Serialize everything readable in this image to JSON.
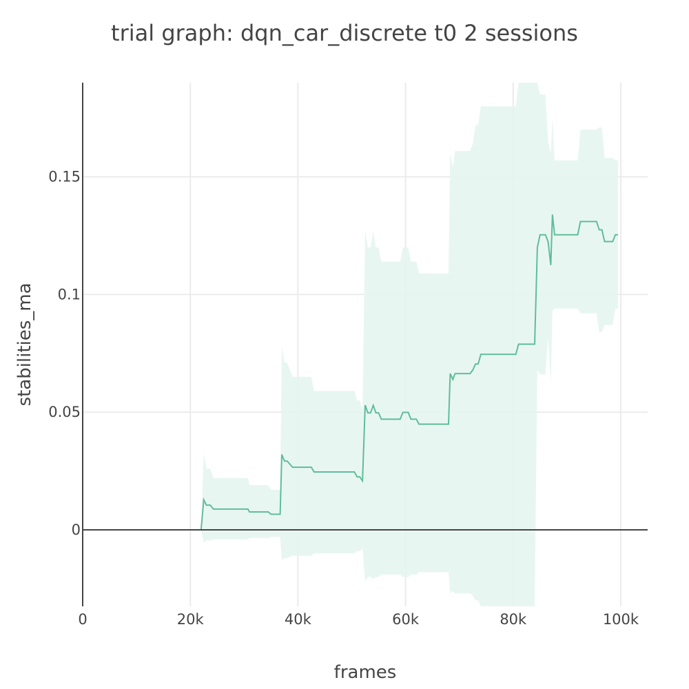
{
  "chart_data": {
    "type": "line",
    "title": "trial graph: dqn_car_discrete t0 2 sessions",
    "xlabel": "frames",
    "ylabel": "stabilities_ma",
    "xlim": [
      0,
      105000
    ],
    "ylim": [
      -0.0325,
      0.19
    ],
    "x_ticks": [
      0,
      20000,
      40000,
      60000,
      80000,
      100000
    ],
    "x_tick_labels": [
      "0",
      "20k",
      "40k",
      "60k",
      "80k",
      "100k"
    ],
    "y_ticks": [
      0,
      0.05,
      0.1,
      0.15
    ],
    "y_tick_labels": [
      "0",
      "0.05",
      "0.1",
      "0.15"
    ],
    "grid": true,
    "legend": "none",
    "colors": {
      "line": "#5ebd9a",
      "band": "#e5f5ef"
    },
    "series": [
      {
        "x": [
          0,
          22000,
          22500,
          23000,
          23700,
          24300,
          30700,
          31000,
          34500,
          35000,
          36700,
          37000,
          37500,
          38000,
          39000,
          39500,
          42500,
          43000,
          50000,
          50500,
          51000,
          51500,
          52000,
          52500,
          53000,
          53500,
          54000,
          54500,
          55000,
          55500,
          59000,
          59500,
          60500,
          61000,
          62000,
          62500,
          68000,
          68300,
          68800,
          69200,
          72000,
          72500,
          73000,
          73500,
          74000,
          74500,
          80500,
          81000,
          84000,
          84500,
          85000,
          86000,
          86500,
          87000,
          87300,
          87700,
          88000,
          92000,
          92500,
          95500,
          96000,
          96500,
          97000,
          98500,
          99000,
          99500
        ],
        "y": [
          0,
          0,
          0.0128,
          0.0105,
          0.0105,
          0.0088,
          0.0088,
          0.0076,
          0.0076,
          0.0066,
          0.0066,
          0.032,
          0.0292,
          0.0292,
          0.0266,
          0.0266,
          0.0266,
          0.0246,
          0.0246,
          0.0246,
          0.0225,
          0.0225,
          0.0208,
          0.053,
          0.0497,
          0.0497,
          0.0529,
          0.0497,
          0.0497,
          0.047,
          0.047,
          0.0499,
          0.0499,
          0.047,
          0.047,
          0.0449,
          0.0449,
          0.0664,
          0.0639,
          0.0664,
          0.0664,
          0.0679,
          0.0705,
          0.0705,
          0.0746,
          0.0746,
          0.0746,
          0.0789,
          0.0789,
          0.12,
          0.1254,
          0.1254,
          0.1225,
          0.1125,
          0.134,
          0.1254,
          0.1254,
          0.1254,
          0.131,
          0.131,
          0.1275,
          0.1275,
          0.1225,
          0.1225,
          0.1254,
          0.1254
        ],
        "upper": [
          0,
          0,
          0.0325,
          0.026,
          0.026,
          0.022,
          0.022,
          0.019,
          0.019,
          0.017,
          0.017,
          0.078,
          0.071,
          0.071,
          0.065,
          0.065,
          0.065,
          0.059,
          0.059,
          0.059,
          0.055,
          0.055,
          0.051,
          0.128,
          0.12,
          0.12,
          0.127,
          0.12,
          0.12,
          0.114,
          0.114,
          0.12,
          0.12,
          0.114,
          0.114,
          0.109,
          0.109,
          0.16,
          0.154,
          0.161,
          0.161,
          0.164,
          0.172,
          0.172,
          0.18,
          0.18,
          0.18,
          0.19,
          0.19,
          0.19,
          0.185,
          0.185,
          0.165,
          0.16,
          0.175,
          0.157,
          0.157,
          0.157,
          0.17,
          0.17,
          0.171,
          0.171,
          0.158,
          0.158,
          0.157,
          0.157
        ],
        "lower": [
          0,
          0,
          -0.0055,
          -0.0045,
          -0.0045,
          -0.004,
          -0.004,
          -0.0035,
          -0.0035,
          -0.003,
          -0.003,
          -0.013,
          -0.012,
          -0.012,
          -0.011,
          -0.011,
          -0.011,
          -0.01,
          -0.01,
          -0.01,
          -0.009,
          -0.009,
          -0.008,
          -0.022,
          -0.02,
          -0.02,
          -0.021,
          -0.02,
          -0.02,
          -0.019,
          -0.019,
          -0.02,
          -0.02,
          -0.019,
          -0.019,
          -0.018,
          -0.018,
          -0.027,
          -0.026,
          -0.027,
          -0.027,
          -0.028,
          -0.03,
          -0.03,
          -0.0325,
          -0.0325,
          -0.0325,
          -0.0325,
          -0.0325,
          0.068,
          0.066,
          0.066,
          0.082,
          0.062,
          0.093,
          0.094,
          0.094,
          0.094,
          0.092,
          0.092,
          0.084,
          0.084,
          0.087,
          0.087,
          0.094,
          0.094
        ]
      }
    ]
  }
}
